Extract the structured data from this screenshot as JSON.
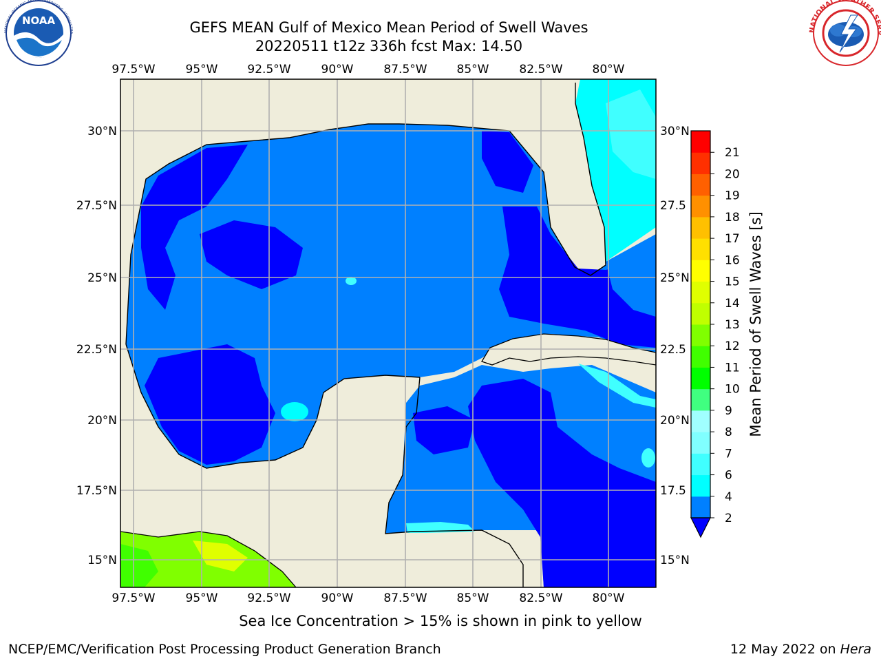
{
  "header": {
    "title": "GEFS MEAN Gulf of Mexico Mean Period of Swell Waves",
    "subtitle": "20220511 t12z 336h fcst   Max: 14.50"
  },
  "logos": {
    "noaa_text": "NOAA",
    "noaa_ring": "NATIONAL OCEANIC AND ATMOSPHERIC ADMINISTRATION · U.S. DEPARTMENT OF COMMERCE",
    "nws_ring": "NATIONAL WEATHER SERVICE"
  },
  "map": {
    "lon_labels": [
      "97.5°W",
      "95°W",
      "92.5°W",
      "90°W",
      "87.5°W",
      "85°W",
      "82.5°W",
      "80°W"
    ],
    "lat_labels_left": [
      "30°N",
      "27.5°N",
      "25°N",
      "22.5°N",
      "20°N",
      "17.5°N",
      "15°N"
    ],
    "lat_labels_right": [
      "30°N",
      "27.5",
      "25°N",
      "22.5",
      "20°N",
      "17.5",
      "15°N"
    ],
    "extent": {
      "lon_min": -98.0,
      "lon_max": -78.2,
      "lat_min": 14.0,
      "lat_max": 31.8
    },
    "grid": true,
    "land_color": "#efeddb",
    "ocean_colors": {
      "period_2_4": "#0080ff",
      "below_2": "#0000ff",
      "period_4_6": "#00ffff",
      "period_6_8": "#40ffff"
    }
  },
  "colorbar": {
    "label": "Mean Period of Swell Waves [s]",
    "ticks": [
      "2",
      "4",
      "6",
      "7",
      "8",
      "9",
      "10",
      "11",
      "12",
      "13",
      "14",
      "15",
      "16",
      "17",
      "18",
      "19",
      "20",
      "21"
    ],
    "colors": [
      "#0080ff",
      "#00ffff",
      "#40ffff",
      "#80ffff",
      "#a0ffff",
      "#40ff80",
      "#00ff00",
      "#40ff00",
      "#80ff00",
      "#c0ff00",
      "#e0ff00",
      "#ffff00",
      "#ffe000",
      "#ffc000",
      "#ff9000",
      "#ff6000",
      "#ff3000",
      "#ff0000"
    ],
    "extend_color": "#0000ff"
  },
  "footer": {
    "note": "Sea Ice Concentration > 15% is shown in pink to yellow",
    "credit": "NCEP/EMC/Verification Post Processing Product Generation Branch",
    "date_prefix": "12 May 2022 on ",
    "date_machine": "Hera"
  }
}
